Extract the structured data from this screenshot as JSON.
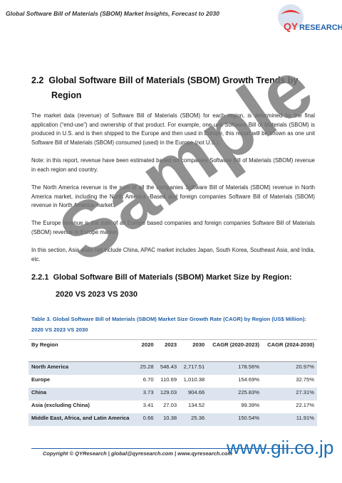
{
  "header": {
    "title": "Global Software Bill of Materials (SBOM) Market Insights, Forecast to 2030",
    "logo": {
      "brand": "QY",
      "suffix": "RESEARCH"
    }
  },
  "section": {
    "number": "2.2",
    "title": "Global Software Bill of Materials (SBOM) Growth Trends by",
    "title_cont": "Region"
  },
  "paragraphs": [
    "The market data (revenue) of Software Bill of Materials (SBOM) for each region, is determined by the final application (“end-use”) and ownership of that product. For example, one unit Software Bill of Materials (SBOM) is produced in U.S. and is then shipped to the Europe and then used in Europe, this report will be shown as one unit Software Bill of Materials (SBOM) consumed (used) in the Europe (not U.S.).",
    "Note: in this report, revenue have been estimated based on companies Software Bill of Materials (SBOM) revenue in each region and country.",
    "The North America revenue is the sum of all the companies Software Bill of Materials (SBOM) revenue in North America market, including the North America -Based and foreign companies Software Bill of Materials (SBOM) revenue in North America market.",
    "The Europe revenue is the sum of all Europe based companies and foreign companies Software Bill of Materials (SBOM) revenue in Europe market.",
    "In this section, Asia does not include China, APAC market includes Japan, South Korea, Southeast Asia, and India, etc."
  ],
  "subsection": {
    "number": "2.2.1",
    "title": "Global Software Bill of Materials (SBOM) Market Size by Region:",
    "title_cont": "2020 VS 2023 VS 2030"
  },
  "table": {
    "caption": "Table 3.   Global Software Bill of Materials (SBOM) Market Size Growth Rate (CAGR) by Region (US$ Million): 2020 VS 2023 VS 2030",
    "columns": [
      "By Region",
      "2020",
      "2023",
      "2030",
      "CAGR (2020-2023)",
      "CAGR (2024-2030)"
    ],
    "rows": [
      [
        "North America",
        "25.28",
        "546.43",
        "2,717.51",
        "178.56%",
        "20.97%"
      ],
      [
        "Europe",
        "6.70",
        "110.69",
        "1,010.38",
        "154.69%",
        "32.75%"
      ],
      [
        "China",
        "3.73",
        "129.03",
        "904.66",
        "225.83%",
        "27.31%"
      ],
      [
        "Asia (excluding China)",
        "3.41",
        "27.03",
        "134.52",
        "99.39%",
        "22.17%"
      ],
      [
        "Middle East, Africa, and Latin America",
        "0.66",
        "10.38",
        "25.36",
        "150.54%",
        "11.91%"
      ]
    ]
  },
  "footer": {
    "copyright": "Copyright © QYResearch | global@qyresearch.com | www.qyresearch.com",
    "site": "www.gii.co.jp"
  },
  "watermark": "Sample"
}
